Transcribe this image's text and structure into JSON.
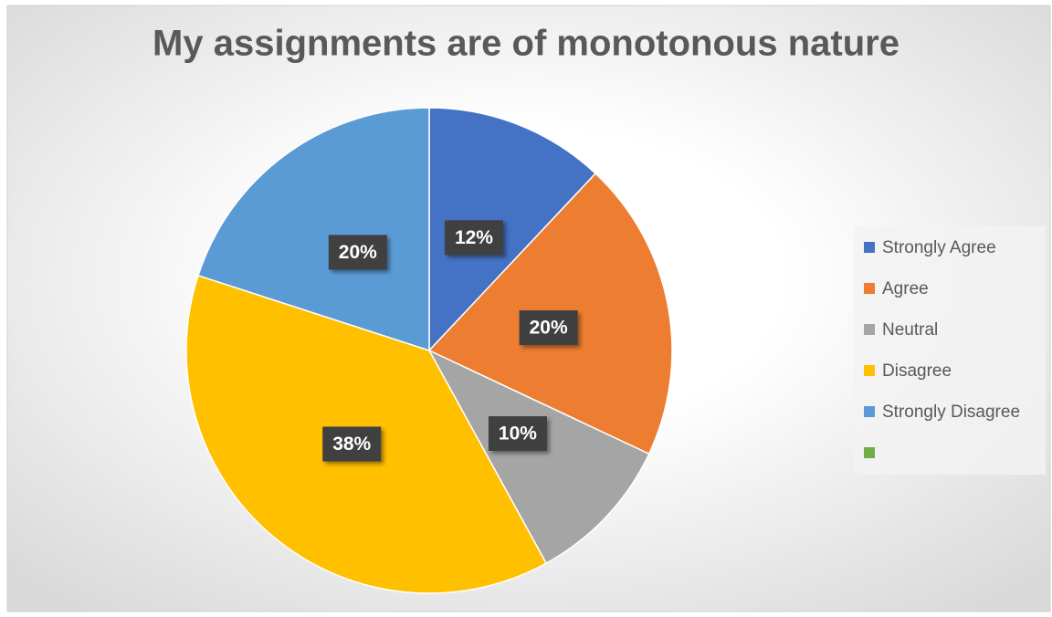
{
  "chart_data": {
    "type": "pie",
    "title": "My assignments are of monotonous nature",
    "categories": [
      "Strongly Agree",
      "Agree",
      "Neutral",
      "Disagree",
      "Strongly Disagree",
      null
    ],
    "values": [
      12,
      20,
      10,
      38,
      20,
      0
    ],
    "value_labels": [
      "12%",
      "20%",
      "10%",
      "38%",
      "20%",
      null
    ],
    "colors": [
      "#4472c4",
      "#ed7d31",
      "#a5a5a5",
      "#ffc000",
      "#5b9bd5",
      "#70ad47"
    ],
    "legend": "right"
  }
}
